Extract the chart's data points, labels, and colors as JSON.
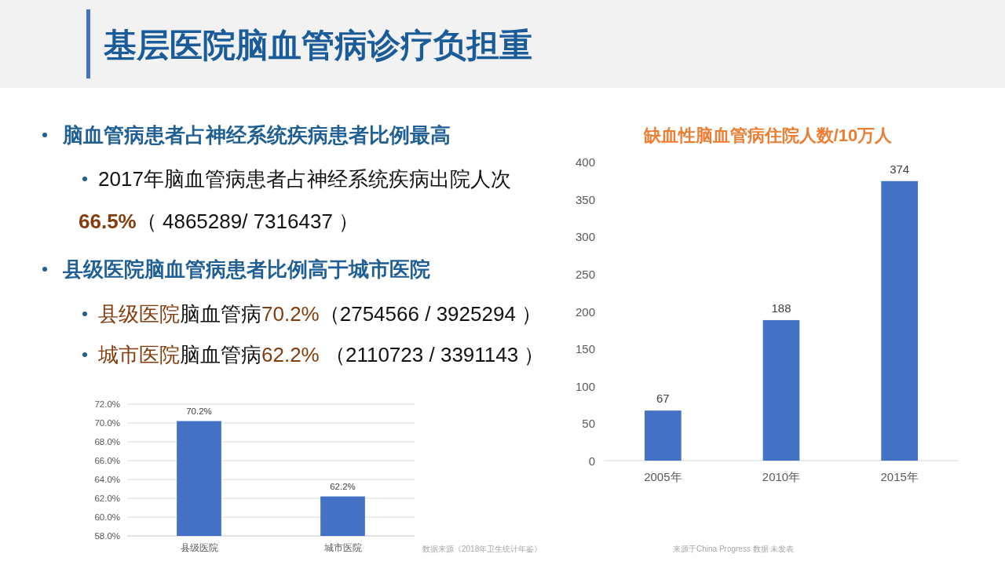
{
  "chart_data": [
    {
      "type": "other",
      "title": "基层医院脑血管病诊疗负担重",
      "annotations": [
        "脑血管病患者占神经系统疾病患者比例最高",
        "2017年脑血管病患者占神经系统疾病出院人次",
        "66.5%（ 4865289/ 7316437 ）",
        "县级医院脑血管病患者比例高于城市医院",
        "县级医院脑血管病70.2%（2754566 / 3925294 ）",
        "城市医院脑血管病62.2% （2110723 / 3391143 ）"
      ]
    },
    {
      "type": "bar",
      "categories": [
        "县级医院",
        "城市医院"
      ],
      "values": [
        70.2,
        62.2
      ],
      "color": "#4472c4",
      "ylim": [
        58,
        72
      ],
      "yticks": [
        {
          "value": 58,
          "label": "58.0%"
        },
        {
          "value": 60,
          "label": "60.0%"
        },
        {
          "value": 62,
          "label": "62.0%"
        },
        {
          "value": 64,
          "label": "64.0%"
        },
        {
          "value": 66,
          "label": "66.0%"
        },
        {
          "value": 68,
          "label": "68.0%"
        },
        {
          "value": 70,
          "label": "70.0%"
        },
        {
          "value": 72,
          "label": "72.0%"
        }
      ],
      "grid": "y",
      "value_labels": [
        "70.2%",
        "62.2%"
      ],
      "annotations": [
        "数据来源《2018年卫生统计年鉴》"
      ]
    },
    {
      "type": "bar",
      "title": "缺血性脑血管病住院人数/10万人",
      "categories": [
        "2005年",
        "2010年",
        "2015年"
      ],
      "values": [
        67,
        188,
        374
      ],
      "color": "#4472c4",
      "ylim": [
        0,
        400
      ],
      "yticks": [
        0,
        50,
        100,
        150,
        200,
        250,
        300,
        350,
        400
      ],
      "data_labels": true,
      "annotations": [
        "来源于China Progress 数据 未发表"
      ]
    }
  ]
}
